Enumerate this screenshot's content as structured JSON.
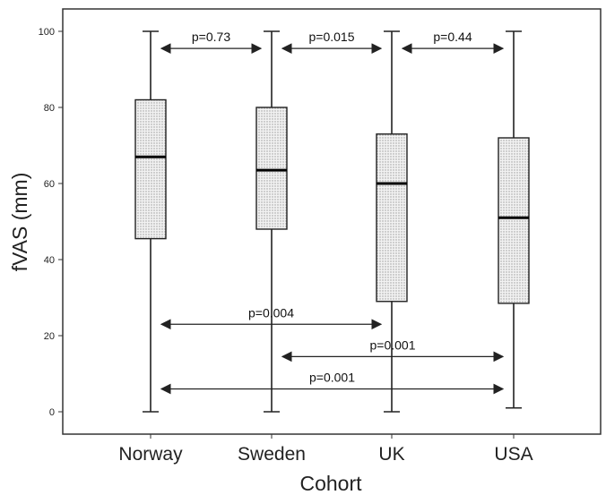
{
  "chart_data": {
    "type": "box",
    "xlabel": "Cohort",
    "ylabel": "fVAS (mm)",
    "ylim": [
      -6,
      107
    ],
    "yticks": [
      0,
      20,
      40,
      60,
      80,
      100
    ],
    "ytick_labels": [
      "0",
      "20",
      "40",
      "60",
      "80",
      "100"
    ],
    "grid": false,
    "categories": [
      "Norway",
      "Sweden",
      "UK",
      "USA"
    ],
    "boxes": [
      {
        "category": "Norway",
        "min": 0,
        "q1": 45.5,
        "median": 67,
        "q3": 82,
        "max": 100
      },
      {
        "category": "Sweden",
        "min": 0,
        "q1": 48,
        "median": 63.5,
        "q3": 80,
        "max": 100
      },
      {
        "category": "UK",
        "min": 0,
        "q1": 29,
        "median": 60,
        "q3": 73,
        "max": 100
      },
      {
        "category": "USA",
        "min": 1,
        "q1": 28.5,
        "median": 51,
        "q3": 72,
        "max": 100
      }
    ],
    "comparisons": [
      {
        "from": "Norway",
        "to": "Sweden",
        "label": "p=0.73",
        "y": 95.5
      },
      {
        "from": "Sweden",
        "to": "UK",
        "label": "p=0.015",
        "y": 95.5
      },
      {
        "from": "UK",
        "to": "USA",
        "label": "p=0.44",
        "y": 95.5
      },
      {
        "from": "Norway",
        "to": "UK",
        "label": "p=0.004",
        "y": 23
      },
      {
        "from": "Sweden",
        "to": "USA",
        "label": "p=0.001",
        "y": 14.5
      },
      {
        "from": "Norway",
        "to": "USA",
        "label": "p=0.001",
        "y": 6
      }
    ],
    "box_fill": "#e6e6e6",
    "line_color": "#222222"
  }
}
